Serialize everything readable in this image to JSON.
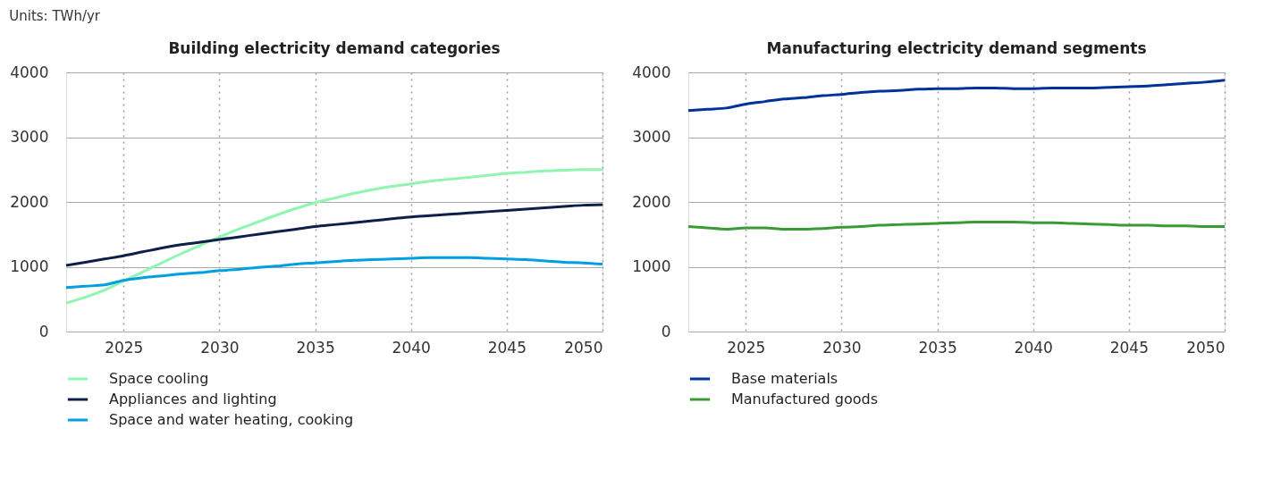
{
  "chart_data": [
    {
      "type": "line",
      "title": "Building electricity demand categories",
      "annotations": [
        "Units: TWh/yr"
      ],
      "x": [
        2022,
        2023,
        2024,
        2025,
        2026,
        2027,
        2028,
        2029,
        2030,
        2031,
        2032,
        2033,
        2034,
        2035,
        2036,
        2037,
        2038,
        2039,
        2040,
        2041,
        2042,
        2043,
        2044,
        2045,
        2046,
        2047,
        2048,
        2049,
        2050
      ],
      "xlim": [
        2022,
        2050
      ],
      "xticks": [
        2025,
        2030,
        2035,
        2040,
        2045,
        2050
      ],
      "ylim": [
        0,
        4000
      ],
      "yticks": [
        0,
        1000,
        2000,
        3000,
        4000
      ],
      "grid": true,
      "legend": "bottom",
      "series": [
        {
          "name": "Space cooling",
          "color": "#8ff5b0",
          "values": [
            440,
            530,
            640,
            780,
            920,
            1060,
            1200,
            1330,
            1460,
            1580,
            1690,
            1800,
            1900,
            1990,
            2060,
            2130,
            2190,
            2240,
            2280,
            2320,
            2350,
            2380,
            2410,
            2440,
            2460,
            2480,
            2490,
            2500,
            2500
          ]
        },
        {
          "name": "Appliances and lighting",
          "color": "#0f1f4b",
          "values": [
            1020,
            1070,
            1120,
            1170,
            1230,
            1290,
            1340,
            1380,
            1420,
            1460,
            1500,
            1540,
            1580,
            1620,
            1650,
            1680,
            1710,
            1740,
            1770,
            1790,
            1810,
            1830,
            1850,
            1870,
            1890,
            1910,
            1930,
            1950,
            1960
          ]
        },
        {
          "name": "Space and water heating, cooking",
          "color": "#009fdf",
          "values": [
            680,
            700,
            720,
            790,
            830,
            860,
            890,
            910,
            940,
            960,
            990,
            1010,
            1040,
            1060,
            1080,
            1100,
            1110,
            1120,
            1130,
            1140,
            1140,
            1140,
            1130,
            1120,
            1110,
            1090,
            1070,
            1060,
            1040
          ]
        }
      ]
    },
    {
      "type": "line",
      "title": "Manufacturing electricity demand segments",
      "x": [
        2022,
        2023,
        2024,
        2025,
        2026,
        2027,
        2028,
        2029,
        2030,
        2031,
        2032,
        2033,
        2034,
        2035,
        2036,
        2037,
        2038,
        2039,
        2040,
        2041,
        2042,
        2043,
        2044,
        2045,
        2046,
        2047,
        2048,
        2049,
        2050
      ],
      "xlim": [
        2022,
        2050
      ],
      "xticks": [
        2025,
        2030,
        2035,
        2040,
        2045,
        2050
      ],
      "ylim": [
        0,
        4000
      ],
      "yticks": [
        0,
        1000,
        2000,
        3000,
        4000
      ],
      "grid": true,
      "legend": "bottom",
      "series": [
        {
          "name": "Base materials",
          "color": "#003399",
          "values": [
            3410,
            3430,
            3450,
            3510,
            3550,
            3590,
            3610,
            3640,
            3660,
            3690,
            3710,
            3720,
            3740,
            3750,
            3750,
            3760,
            3760,
            3750,
            3750,
            3760,
            3760,
            3760,
            3770,
            3780,
            3790,
            3810,
            3830,
            3850,
            3880
          ]
        },
        {
          "name": "Manufactured goods",
          "color": "#3a9b35",
          "values": [
            1620,
            1600,
            1580,
            1600,
            1600,
            1580,
            1580,
            1590,
            1610,
            1620,
            1640,
            1650,
            1660,
            1670,
            1680,
            1690,
            1690,
            1690,
            1680,
            1680,
            1670,
            1660,
            1650,
            1640,
            1640,
            1630,
            1630,
            1620,
            1620
          ]
        }
      ]
    }
  ]
}
